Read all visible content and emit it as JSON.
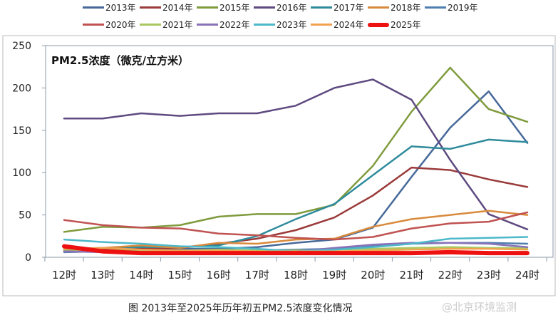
{
  "chart_data": {
    "type": "line",
    "title": "PM2.5浓度（微克/立方米）",
    "caption": "图 2013年至2025年历年初五PM2.5浓度变化情况",
    "watermark": "@北京环境监测",
    "xlabel": "",
    "ylabel": "PM2.5浓度（微克/立方米）",
    "ylim": [
      0,
      250
    ],
    "yticks": [
      "0",
      "50",
      "100",
      "150",
      "200",
      "250"
    ],
    "categories": [
      "12时",
      "13时",
      "14时",
      "15时",
      "16时",
      "17时",
      "18时",
      "19时",
      "20时",
      "21时",
      "22时",
      "23时",
      "24时"
    ],
    "legend_placement": "top",
    "series": [
      {
        "name": "2013年",
        "color": "#46699a",
        "values": [
          7,
          8,
          9,
          10,
          10,
          12,
          17,
          21,
          35,
          95,
          153,
          196,
          135
        ]
      },
      {
        "name": "2014年",
        "color": "#9b3a3a",
        "values": [
          8,
          9,
          10,
          11,
          16,
          22,
          32,
          47,
          73,
          106,
          103,
          92,
          83
        ]
      },
      {
        "name": "2015年",
        "color": "#7f9b3d",
        "values": [
          30,
          36,
          35,
          38,
          48,
          51,
          51,
          62,
          108,
          172,
          224,
          175,
          160
        ]
      },
      {
        "name": "2016年",
        "color": "#5e4a80",
        "values": [
          164,
          164,
          170,
          167,
          170,
          170,
          179,
          200,
          210,
          186,
          115,
          51,
          33
        ]
      },
      {
        "name": "2017年",
        "color": "#2f8b9c",
        "values": [
          10,
          11,
          12,
          12,
          14,
          25,
          45,
          63,
          97,
          131,
          128,
          139,
          136
        ]
      },
      {
        "name": "2018年",
        "color": "#d88a3c",
        "values": [
          9,
          11,
          14,
          11,
          17,
          16,
          21,
          22,
          36,
          45,
          50,
          55,
          50
        ]
      },
      {
        "name": "2019年",
        "color": "#4e7fb1",
        "values": [
          6,
          7,
          7,
          8,
          9,
          8,
          9,
          10,
          13,
          16,
          17,
          17,
          16
        ]
      },
      {
        "name": "2020年",
        "color": "#c05252",
        "values": [
          44,
          38,
          35,
          34,
          28,
          26,
          23,
          21,
          24,
          34,
          40,
          42,
          53
        ]
      },
      {
        "name": "2021年",
        "color": "#a9c862",
        "values": [
          9,
          8,
          8,
          8,
          9,
          8,
          8,
          9,
          10,
          11,
          12,
          11,
          11
        ]
      },
      {
        "name": "2022年",
        "color": "#8a72b8",
        "values": [
          7,
          6,
          6,
          6,
          6,
          7,
          7,
          11,
          15,
          17,
          17,
          16,
          12
        ]
      },
      {
        "name": "2023年",
        "color": "#4cb8c9",
        "values": [
          21,
          18,
          16,
          13,
          12,
          10,
          7,
          9,
          12,
          16,
          22,
          23,
          24
        ]
      },
      {
        "name": "2024年",
        "color": "#f0a24f",
        "values": [
          10,
          11,
          9,
          8,
          8,
          7,
          7,
          7,
          8,
          9,
          10,
          10,
          9
        ]
      },
      {
        "name": "2025年",
        "color": "#ee1111",
        "values": [
          13,
          7,
          5,
          5,
          5,
          5,
          5,
          5,
          5,
          5,
          6,
          5,
          5
        ]
      }
    ]
  }
}
